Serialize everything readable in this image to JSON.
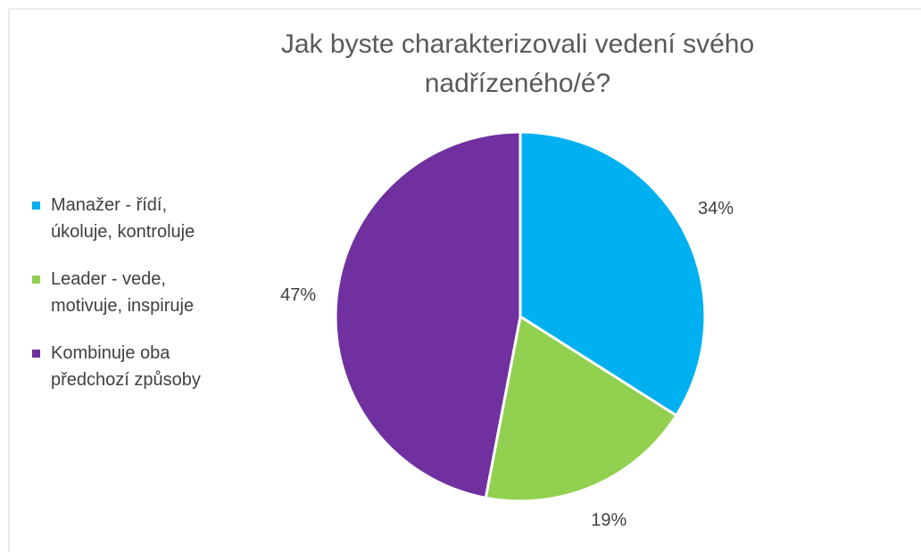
{
  "chart_data": {
    "type": "pie",
    "title": "Jak byste charakterizovali vedení svého nadřízeného/é?",
    "categories": [
      "Manažer - řídí, úkoluje, kontroluje",
      "Leader - vede, motivuje, inspiruje",
      "Kombinuje oba předchozí způsoby"
    ],
    "values": [
      34,
      19,
      47
    ],
    "value_labels": [
      "34%",
      "19%",
      "47%"
    ],
    "colors": [
      "#00b0f0",
      "#92d050",
      "#7030a0"
    ],
    "legend": "left"
  }
}
